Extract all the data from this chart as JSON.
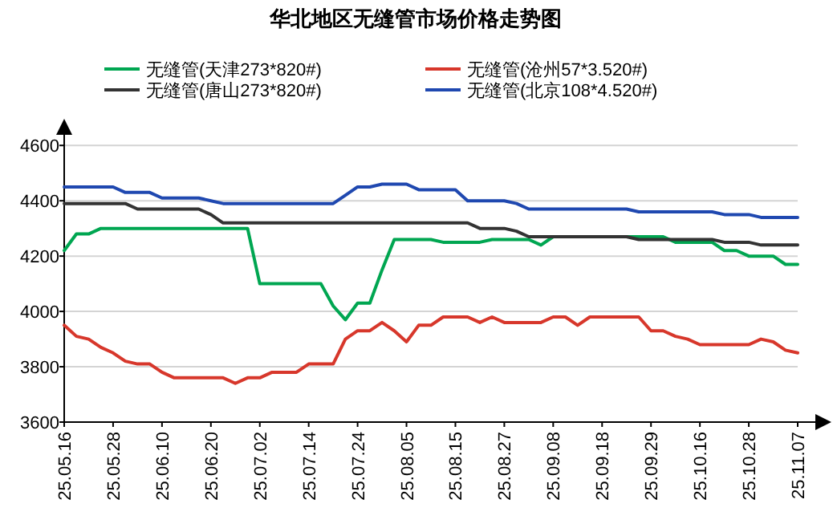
{
  "chart_data": {
    "type": "line",
    "title": "华北地区无缝管市场价格走势图",
    "categories": [
      "25.05.16",
      null,
      null,
      null,
      "25.05.28",
      null,
      null,
      null,
      "25.06.10",
      null,
      null,
      null,
      "25.06.20",
      null,
      null,
      null,
      "25.07.02",
      null,
      null,
      null,
      "25.07.14",
      null,
      null,
      null,
      "25.07.24",
      null,
      null,
      null,
      "25.08.05",
      null,
      null,
      null,
      "25.08.15",
      null,
      null,
      null,
      "25.08.27",
      null,
      null,
      null,
      "25.09.08",
      null,
      null,
      null,
      "25.09.18",
      null,
      null,
      null,
      "25.09.29",
      null,
      null,
      null,
      "25.10.16",
      null,
      null,
      null,
      "25.10.28",
      null,
      null,
      null,
      "25.11.07"
    ],
    "series": [
      {
        "name": "无缝管(天津273*820#)",
        "color": "#00a651",
        "values": [
          4220,
          4280,
          4280,
          4300,
          4300,
          4300,
          4300,
          4300,
          4300,
          4300,
          4300,
          4300,
          4300,
          4300,
          4300,
          4300,
          4100,
          4100,
          4100,
          4100,
          4100,
          4100,
          4020,
          3970,
          4030,
          4030,
          4150,
          4260,
          4260,
          4260,
          4260,
          4250,
          4250,
          4250,
          4250,
          4260,
          4260,
          4260,
          4260,
          4240,
          4270,
          4270,
          4270,
          4270,
          4270,
          4270,
          4270,
          4270,
          4270,
          4270,
          4250,
          4250,
          4250,
          4250,
          4220,
          4220,
          4200,
          4200,
          4200,
          4170,
          4170
        ]
      },
      {
        "name": "无缝管(沧州57*3.520#)",
        "color": "#d7372b",
        "values": [
          3950,
          3910,
          3900,
          3870,
          3850,
          3820,
          3810,
          3810,
          3780,
          3760,
          3760,
          3760,
          3760,
          3760,
          3740,
          3760,
          3760,
          3780,
          3780,
          3780,
          3810,
          3810,
          3810,
          3900,
          3930,
          3930,
          3960,
          3930,
          3890,
          3950,
          3950,
          3980,
          3980,
          3980,
          3960,
          3980,
          3960,
          3960,
          3960,
          3960,
          3980,
          3980,
          3950,
          3980,
          3980,
          3980,
          3980,
          3980,
          3930,
          3930,
          3910,
          3900,
          3880,
          3880,
          3880,
          3880,
          3880,
          3900,
          3890,
          3860,
          3850
        ]
      },
      {
        "name": "无缝管(唐山273*820#)",
        "color": "#333333",
        "values": [
          4390,
          4390,
          4390,
          4390,
          4390,
          4390,
          4370,
          4370,
          4370,
          4370,
          4370,
          4370,
          4350,
          4320,
          4320,
          4320,
          4320,
          4320,
          4320,
          4320,
          4320,
          4320,
          4320,
          4320,
          4320,
          4320,
          4320,
          4320,
          4320,
          4320,
          4320,
          4320,
          4320,
          4320,
          4300,
          4300,
          4300,
          4290,
          4270,
          4270,
          4270,
          4270,
          4270,
          4270,
          4270,
          4270,
          4270,
          4260,
          4260,
          4260,
          4260,
          4260,
          4260,
          4260,
          4250,
          4250,
          4250,
          4240,
          4240,
          4240,
          4240
        ]
      },
      {
        "name": "无缝管(北京108*4.520#)",
        "color": "#1f48b0",
        "values": [
          4450,
          4450,
          4450,
          4450,
          4450,
          4430,
          4430,
          4430,
          4410,
          4410,
          4410,
          4410,
          4400,
          4390,
          4390,
          4390,
          4390,
          4390,
          4390,
          4390,
          4390,
          4390,
          4390,
          4420,
          4450,
          4450,
          4460,
          4460,
          4460,
          4440,
          4440,
          4440,
          4440,
          4400,
          4400,
          4400,
          4400,
          4390,
          4370,
          4370,
          4370,
          4370,
          4370,
          4370,
          4370,
          4370,
          4370,
          4360,
          4360,
          4360,
          4360,
          4360,
          4360,
          4360,
          4350,
          4350,
          4350,
          4340,
          4340,
          4340,
          4340
        ]
      }
    ],
    "ylim": [
      3600,
      4650
    ],
    "yticks": [
      3600,
      3800,
      4000,
      4200,
      4400,
      4600
    ],
    "grid": "y",
    "legend": "top"
  }
}
